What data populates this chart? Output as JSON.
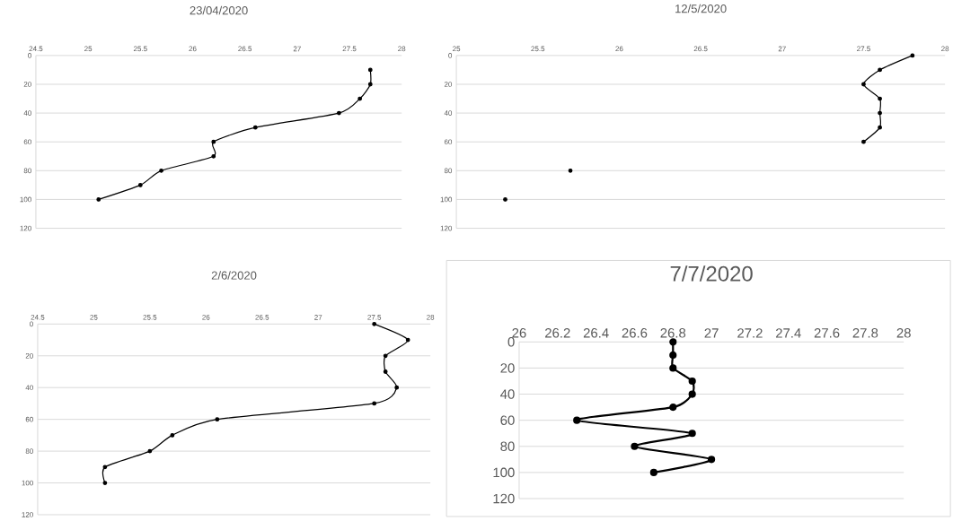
{
  "chart_data": [
    {
      "type": "line",
      "title": "23/04/2020",
      "xlim": [
        24.5,
        28
      ],
      "xticks": [
        24.5,
        25,
        25.5,
        26,
        26.5,
        27,
        27.5,
        28
      ],
      "ylim": [
        120,
        0
      ],
      "yticks": [
        0,
        20,
        40,
        60,
        80,
        100,
        120
      ],
      "grid": "y",
      "marker": "circle",
      "line_style": "solid",
      "series": [
        {
          "color": "#000000",
          "x": [
            27.7,
            27.7,
            27.6,
            27.4,
            26.6,
            26.2,
            26.2,
            25.7,
            25.5,
            25.1
          ],
          "values": [
            10,
            20,
            30,
            40,
            50,
            60,
            70,
            80,
            90,
            100
          ]
        }
      ]
    },
    {
      "type": "line",
      "title": "12/5/2020",
      "xlim": [
        25,
        28
      ],
      "xticks": [
        25,
        25.5,
        26,
        26.5,
        27,
        27.5,
        28
      ],
      "ylim": [
        120,
        0
      ],
      "yticks": [
        0,
        20,
        40,
        60,
        80,
        100,
        120
      ],
      "grid": "y",
      "marker": "circle",
      "line_style": "solid",
      "series": [
        {
          "color": "#000000",
          "x": [
            27.8,
            27.6,
            27.5,
            27.6,
            27.6,
            27.6,
            27.5
          ],
          "values": [
            0,
            10,
            20,
            30,
            40,
            50,
            60
          ]
        },
        {
          "type": "scatter",
          "color": "#000000",
          "x": [
            25.7,
            25.3
          ],
          "values": [
            80,
            100
          ]
        }
      ]
    },
    {
      "type": "line",
      "title": "2/6/2020",
      "xlim": [
        24.5,
        28
      ],
      "xticks": [
        24.5,
        25,
        25.5,
        26,
        26.5,
        27,
        27.5,
        28
      ],
      "ylim": [
        120,
        0
      ],
      "yticks": [
        0,
        20,
        40,
        60,
        80,
        100,
        120
      ],
      "grid": "y",
      "marker": "circle",
      "line_style": "solid",
      "series": [
        {
          "color": "#000000",
          "x": [
            27.5,
            27.8,
            27.6,
            27.6,
            27.7,
            27.5,
            26.1,
            25.7,
            25.5,
            25.1,
            25.1
          ],
          "values": [
            0,
            10,
            20,
            30,
            40,
            50,
            60,
            70,
            80,
            90,
            100
          ]
        }
      ]
    },
    {
      "type": "line",
      "title": "7/7/2020",
      "xlim": [
        26,
        28
      ],
      "xticks": [
        26,
        26.2,
        26.4,
        26.6,
        26.8,
        27,
        27.2,
        27.4,
        27.6,
        27.8,
        28
      ],
      "ylim": [
        120,
        0
      ],
      "yticks": [
        0,
        20,
        40,
        60,
        80,
        100,
        120
      ],
      "grid": "y",
      "marker": "circle",
      "line_style": "solid",
      "series": [
        {
          "color": "#000000",
          "x": [
            26.8,
            26.8,
            26.8,
            26.9,
            26.9,
            26.8,
            26.3,
            26.9,
            26.6,
            27.0,
            26.7
          ],
          "values": [
            0,
            10,
            20,
            30,
            40,
            50,
            60,
            70,
            80,
            90,
            100
          ]
        }
      ]
    }
  ]
}
